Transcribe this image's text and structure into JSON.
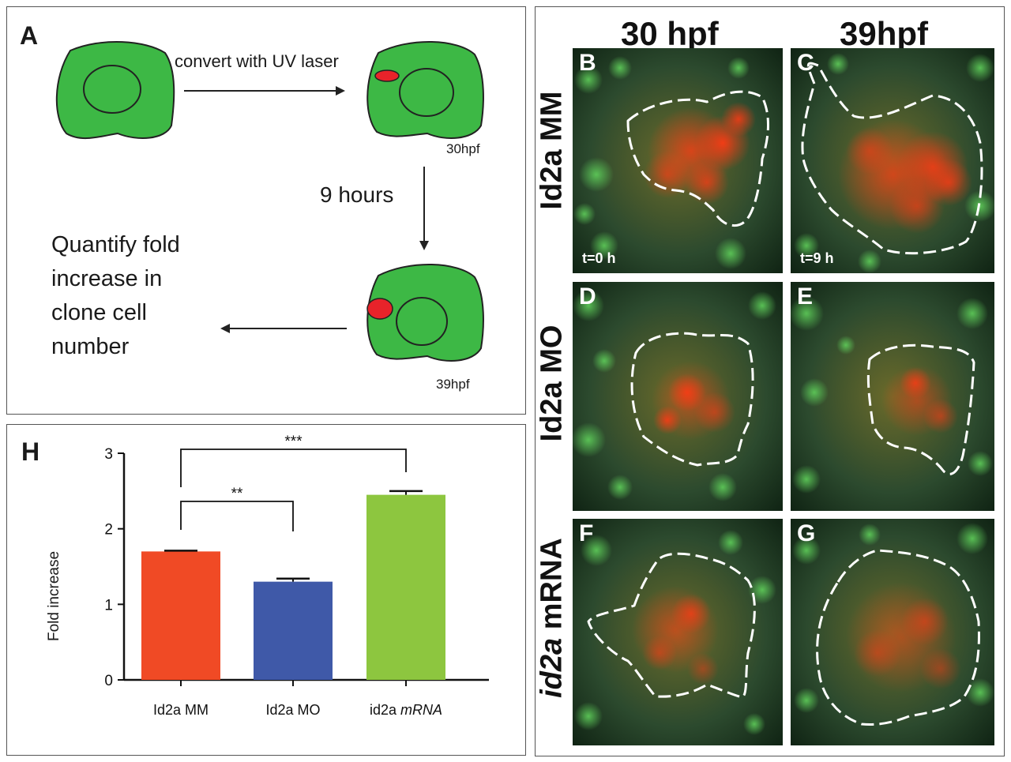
{
  "panel_a": {
    "letter": "A",
    "arrow_label": "convert with UV laser",
    "stage1_label": "30hpf",
    "time_label": "9 hours",
    "stage2_label": "39hpf",
    "quantify_text": "Quantify fold increase in clone cell number",
    "colors": {
      "cell_fill": "#3db845",
      "clone_fill": "#e8232a",
      "outline": "#222222"
    }
  },
  "panel_h": {
    "letter": "H",
    "sig1": "**",
    "sig2": "***"
  },
  "chart_data": {
    "type": "bar",
    "title": "",
    "xlabel": "",
    "ylabel": "Fold increase",
    "categories": [
      "Id2a MM",
      "Id2a MO",
      "id2a mRNA"
    ],
    "category_prefixes": [
      "Id2a MM",
      "Id2a MO",
      "id2a"
    ],
    "category_italic_suffixes": [
      "",
      "",
      "mRNA"
    ],
    "values": [
      1.7,
      1.3,
      2.45
    ],
    "errors": [
      0.01,
      0.04,
      0.05
    ],
    "colors": [
      "#f04a25",
      "#3f59a8",
      "#8dc63f"
    ],
    "ylim": [
      0,
      3
    ],
    "yticks": [
      "0",
      "1",
      "2",
      "3"
    ],
    "annotations": [
      {
        "from": "Id2a MM",
        "to": "Id2a MO",
        "label": "**"
      },
      {
        "from": "Id2a MM",
        "to": "id2a mRNA",
        "label": "***"
      }
    ]
  },
  "micrographs": {
    "col_headers": [
      "30 hpf",
      "39hpf"
    ],
    "row_headers": [
      "Id2a MM",
      "Id2a MO",
      "id2a mRNA"
    ],
    "row_header_italic_prefix": [
      "",
      "",
      "id2a"
    ],
    "row_header_suffix": [
      "",
      "",
      " mRNA"
    ],
    "panels": [
      {
        "letter": "B",
        "time": "t=0 h"
      },
      {
        "letter": "C",
        "time": "t=9 h"
      },
      {
        "letter": "D",
        "time": ""
      },
      {
        "letter": "E",
        "time": ""
      },
      {
        "letter": "F",
        "time": ""
      },
      {
        "letter": "G",
        "time": ""
      }
    ]
  }
}
